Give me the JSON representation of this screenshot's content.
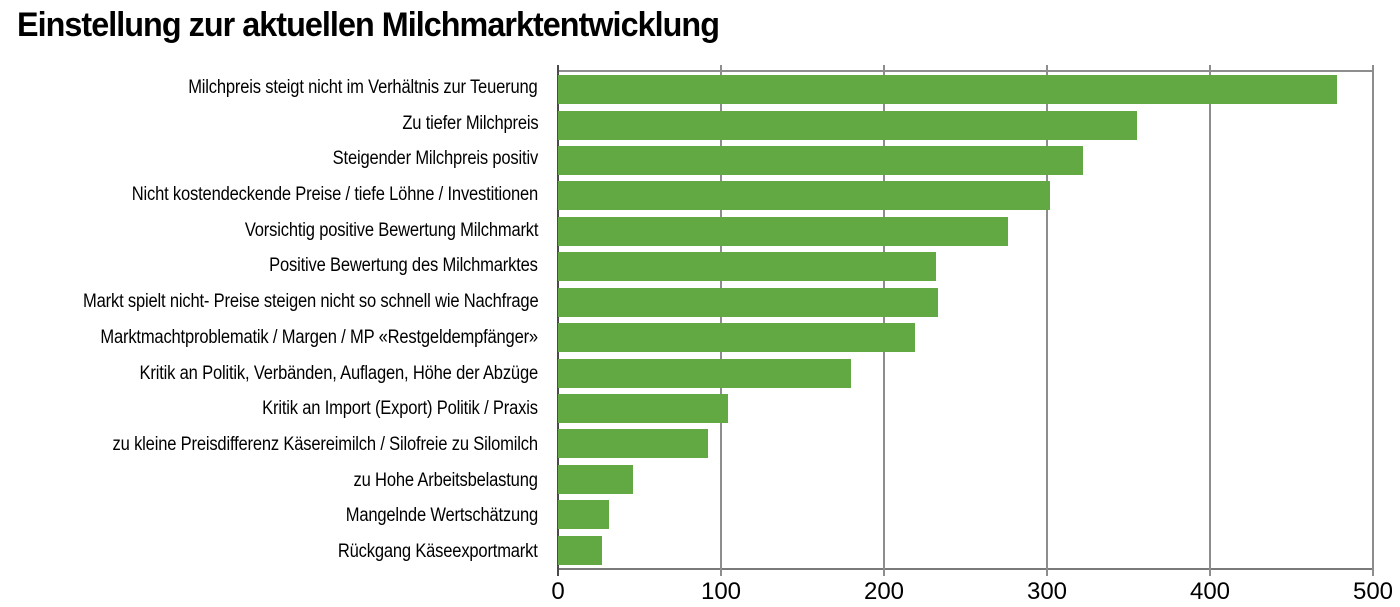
{
  "title": "Einstellung zur aktuellen Milchmarktentwicklung",
  "colors": {
    "bar": "#62a944",
    "gridline": "#8d8d8d",
    "axis": "#4a4a4a",
    "text": "#000000",
    "background": "#ffffff"
  },
  "chart_data": {
    "type": "bar",
    "orientation": "horizontal",
    "title": "Einstellung zur aktuellen Milchmarktentwicklung",
    "categories": [
      "Milchpreis steigt nicht im Verhältnis zur Teuerung",
      "Zu tiefer Milchpreis",
      "Steigender Milchpreis positiv",
      "Nicht kostendeckende Preise / tiefe Löhne / Investitionen",
      "Vorsichtig positive Bewertung Milchmarkt",
      "Positive Bewertung des Milchmarktes",
      "Markt spielt nicht- Preise steigen nicht so schnell wie Nachfrage",
      "Marktmachtproblematik / Margen / MP «Restgeldempfänger»",
      "Kritik an Politik, Verbänden, Auflagen, Höhe der Abzüge",
      "Kritik an Import (Export) Politik / Praxis",
      "zu kleine Preisdifferenz Käsereimilch / Silofreie zu Silomilch",
      "zu Hohe Arbeitsbelastung",
      "Mangelnde Wertschätzung",
      "Rückgang Käseexportmarkt"
    ],
    "values": [
      478,
      355,
      322,
      302,
      276,
      232,
      233,
      219,
      180,
      104,
      92,
      46,
      31,
      27
    ],
    "xlabel": "",
    "ylabel": "",
    "xlim": [
      0,
      500
    ],
    "xticks": [
      0,
      100,
      200,
      300,
      400,
      500
    ],
    "grid": true,
    "legend": false,
    "bar_color": "#62a944"
  }
}
